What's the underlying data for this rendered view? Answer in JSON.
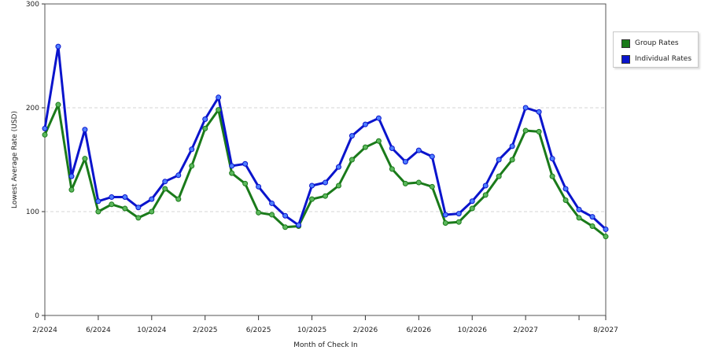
{
  "chart_data": {
    "type": "line",
    "xlabel": "Month of Check In",
    "ylabel": "Lowest Average Rate (USD)",
    "ylim": [
      0,
      300
    ],
    "yticks": [
      0,
      100,
      200,
      300
    ],
    "grid": "horizontal dashed",
    "legend_position": "right",
    "x": [
      "2024-02",
      "2024-03",
      "2024-04",
      "2024-05",
      "2024-06",
      "2024-07",
      "2024-08",
      "2024-09",
      "2024-10",
      "2024-11",
      "2024-12",
      "2025-01",
      "2025-02",
      "2025-03",
      "2025-04",
      "2025-05",
      "2025-06",
      "2025-07",
      "2025-08",
      "2025-09",
      "2025-10",
      "2025-11",
      "2025-12",
      "2026-01",
      "2026-02",
      "2026-03",
      "2026-04",
      "2026-05",
      "2026-06",
      "2026-07",
      "2026-08",
      "2026-09",
      "2026-10",
      "2026-11",
      "2026-12",
      "2027-01",
      "2027-02",
      "2027-03",
      "2027-04",
      "2027-05",
      "2027-06",
      "2027-07",
      "2027-08"
    ],
    "xtick_labels": [
      {
        "index": 0,
        "label": "2/2024"
      },
      {
        "index": 4,
        "label": "6/2024"
      },
      {
        "index": 8,
        "label": "10/2024"
      },
      {
        "index": 12,
        "label": "2/2025"
      },
      {
        "index": 16,
        "label": "6/2025"
      },
      {
        "index": 20,
        "label": "10/2025"
      },
      {
        "index": 24,
        "label": "2/2026"
      },
      {
        "index": 28,
        "label": "6/2026"
      },
      {
        "index": 32,
        "label": "10/2026"
      },
      {
        "index": 36,
        "label": "2/2027"
      },
      {
        "index": 40,
        "label": ""
      },
      {
        "index": 42,
        "label": "8/2027"
      }
    ],
    "series": [
      {
        "name": "Group Rates",
        "color": "#1a7a1a",
        "marker_color": "#5cb85c",
        "values": [
          174,
          203,
          121,
          151,
          100,
          107,
          103,
          94,
          100,
          122,
          112,
          144,
          180,
          198,
          137,
          127,
          99,
          97,
          85,
          86,
          112,
          115,
          125,
          150,
          162,
          168,
          141,
          127,
          128,
          124,
          89,
          90,
          103,
          116,
          134,
          150,
          178,
          177,
          134,
          111,
          94,
          86,
          76
        ]
      },
      {
        "name": "Individual Rates",
        "color": "#0a14cc",
        "marker_color": "#4f7fff",
        "values": [
          180,
          259,
          134,
          179,
          110,
          114,
          114,
          104,
          112,
          129,
          135,
          160,
          189,
          210,
          144,
          146,
          124,
          108,
          96,
          87,
          125,
          128,
          143,
          173,
          184,
          190,
          161,
          148,
          159,
          153,
          97,
          98,
          110,
          125,
          150,
          163,
          200,
          196,
          151,
          122,
          102,
          95,
          83
        ]
      }
    ]
  }
}
